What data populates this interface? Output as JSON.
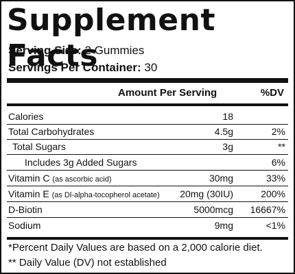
{
  "title": "Supplement Facts",
  "serving_size": {
    "label": "Serving Size:",
    "value": "2 Gummies"
  },
  "servings_per_container": {
    "label": "Servings Per Container:",
    "value": "30"
  },
  "header": {
    "amount": "Amount Per Serving",
    "dv": "%DV"
  },
  "rows": [
    {
      "name": "Calories",
      "note": "",
      "amount": "18",
      "dv": ""
    },
    {
      "name": "Total Carbohydrates",
      "note": "",
      "amount": "4.5g",
      "dv": "2%"
    },
    {
      "name": "Total Sugars",
      "note": "",
      "amount": "3g",
      "dv": "**"
    },
    {
      "name": "Includes 3g Added Sugars",
      "note": "",
      "amount": "",
      "dv": "6%"
    },
    {
      "name": "Vitamin C",
      "note": "(as ascorbic acid)",
      "amount": "30mg",
      "dv": "33%"
    },
    {
      "name": "Vitamin E",
      "note": "(as Dl-alpha-tocopherol acetate)",
      "amount": "20mg (30IU)",
      "dv": "200%"
    },
    {
      "name": "D-Biotin",
      "note": "",
      "amount": "5000mcg",
      "dv": "16667%"
    },
    {
      "name": "Sodium",
      "note": "",
      "amount": "9mg",
      "dv": "<1%"
    }
  ],
  "footnotes": [
    "*Percent Daily Values are based on a 2,000 calorie diet.",
    "** Daily Value (DV) not established"
  ]
}
